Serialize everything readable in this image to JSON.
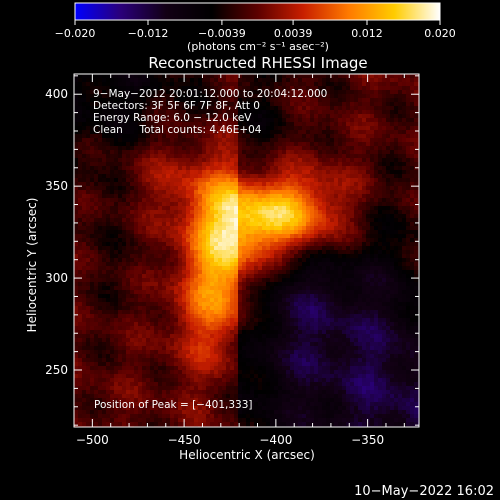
{
  "chart_data": {
    "type": "heatmap",
    "title": "Reconstructed RHESSI Image",
    "xlabel": "Heliocentric X (arcsec)",
    "ylabel": "Heliocentric Y (arcsec)",
    "xlim": [
      -510,
      -322
    ],
    "ylim": [
      219,
      411
    ],
    "x_ticks": [
      -500,
      -450,
      -400,
      -350
    ],
    "y_ticks": [
      250,
      300,
      350,
      400
    ],
    "colorbar": {
      "range": [
        -0.02,
        0.02
      ],
      "ticks": [
        -0.02,
        -0.012,
        -0.0039,
        0.0039,
        0.012,
        0.02
      ],
      "tick_labels": [
        "−0.020",
        "−0.012",
        "−0.0039",
        "0.0039",
        "0.012",
        "0.020"
      ],
      "units_label": "(photons cm⁻² s⁻¹ asec⁻²)",
      "colors": [
        "#0000ff",
        "#2a007a",
        "#120014",
        "#000000",
        "#5c0000",
        "#c81e00",
        "#ff7a00",
        "#ffcc00",
        "#ffffff"
      ]
    },
    "peak": {
      "x": -401,
      "y": 333
    },
    "sources": [
      {
        "x": -401,
        "y": 333,
        "sx": 22,
        "sy": 16,
        "amp": 0.02
      },
      {
        "x": -425,
        "y": 310,
        "sx": 16,
        "sy": 28,
        "amp": 0.013
      },
      {
        "x": -440,
        "y": 288,
        "sx": 16,
        "sy": 32,
        "amp": 0.007
      },
      {
        "x": -450,
        "y": 355,
        "sx": 28,
        "sy": 22,
        "amp": 0.0085
      },
      {
        "x": -375,
        "y": 345,
        "sx": 18,
        "sy": 26,
        "amp": 0.005
      }
    ],
    "annotations": [
      "9−May−2012 20:01:12.000 to 20:04:12.000",
      "Detectors: 3F 5F 6F 7F 8F, Att 0",
      "Energy Range: 6.0 − 12.0 keV",
      "Clean     Total counts: 4.46E+04"
    ],
    "peak_label": "Position of Peak = [−401,333]",
    "grid": false,
    "legend": "none"
  },
  "footer": {
    "timestamp": "10−May−2022 16:02"
  }
}
